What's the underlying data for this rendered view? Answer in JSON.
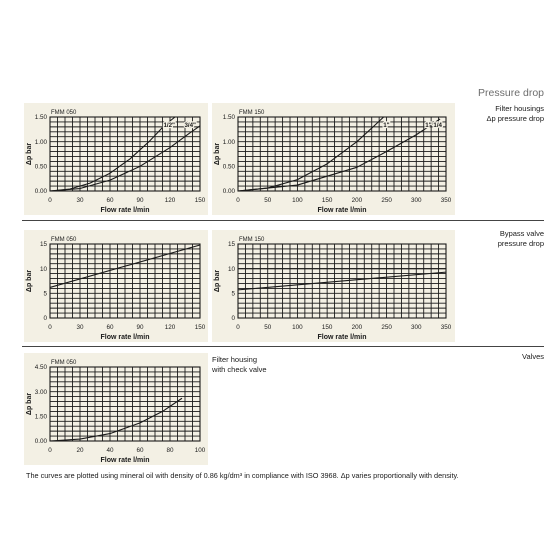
{
  "heading": "Pressure drop",
  "section_labels": {
    "filter_housings": "Filter housings",
    "filter_housings_dp": "Δp pressure drop",
    "bypass_valve": "Bypass valve",
    "bypass_pressure_drop": "pressure drop",
    "valves": "Valves",
    "check_valve_line1": "Filter housing",
    "check_valve_line2": "with check valve"
  },
  "footnote": "The curves are plotted using mineral oil with density of 0.86 kg/dm³ in compliance with ISO 3968. Δp varies proportionally with density.",
  "colors": {
    "panel_bg": "#f3f0e4",
    "grid": "#1a1a1a",
    "curve": "#1a1a1a",
    "rule": "#444444"
  },
  "chart_data": [
    {
      "id": "fh050",
      "type": "line",
      "title": "FMM 050",
      "xlabel": "Flow rate l/min",
      "ylabel": "Δp bar",
      "xlim": [
        0,
        150
      ],
      "ylim": [
        0,
        1.5
      ],
      "xticks": [
        0,
        30,
        60,
        90,
        120,
        150
      ],
      "xtick_labels": [
        "0",
        "30",
        "60",
        "90",
        "120",
        "150"
      ],
      "yticks": [
        0,
        0.5,
        1.0,
        1.5
      ],
      "ytick_labels": [
        "0.00",
        "0.50",
        "1.00",
        "1.50"
      ],
      "grid": true,
      "series": [
        {
          "name": "1/2\"",
          "x": [
            0,
            20,
            40,
            60,
            80,
            100,
            115,
            125
          ],
          "y": [
            0,
            0.04,
            0.16,
            0.36,
            0.65,
            1.02,
            1.34,
            1.5
          ]
        },
        {
          "name": "3/4\"",
          "x": [
            0,
            30,
            60,
            90,
            120,
            140,
            150
          ],
          "y": [
            0,
            0.05,
            0.22,
            0.5,
            0.88,
            1.18,
            1.32
          ]
        }
      ]
    },
    {
      "id": "fh150",
      "type": "line",
      "title": "FMM 150",
      "xlabel": "Flow rate l/min",
      "ylabel": "Δp bar",
      "xlim": [
        0,
        350
      ],
      "ylim": [
        0,
        1.5
      ],
      "xticks": [
        0,
        50,
        100,
        150,
        200,
        250,
        300,
        350
      ],
      "xtick_labels": [
        "0",
        "50",
        "100",
        "150",
        "200",
        "250",
        "300",
        "350"
      ],
      "yticks": [
        0,
        0.5,
        1.0,
        1.5
      ],
      "ytick_labels": [
        "0.00",
        "0.50",
        "1.00",
        "1.50"
      ],
      "grid": true,
      "series": [
        {
          "name": "1\"",
          "x": [
            0,
            50,
            100,
            150,
            200,
            230,
            245
          ],
          "y": [
            0,
            0.06,
            0.23,
            0.55,
            1.0,
            1.33,
            1.5
          ]
        },
        {
          "name": "1\" 1/4",
          "x": [
            0,
            100,
            200,
            250,
            300,
            340
          ],
          "y": [
            0,
            0.12,
            0.48,
            0.8,
            1.14,
            1.46
          ]
        }
      ]
    },
    {
      "id": "bp050",
      "type": "line",
      "title": "FMM 050",
      "xlabel": "Flow rate l/min",
      "ylabel": "Δp bar",
      "xlim": [
        0,
        150
      ],
      "ylim": [
        0,
        15
      ],
      "xticks": [
        0,
        30,
        60,
        90,
        120,
        150
      ],
      "xtick_labels": [
        "0",
        "30",
        "60",
        "90",
        "120",
        "150"
      ],
      "yticks": [
        0,
        5,
        10,
        15
      ],
      "ytick_labels": [
        "0",
        "5",
        "10",
        "15"
      ],
      "grid": true,
      "series": [
        {
          "x": [
            0,
            150
          ],
          "y": [
            6.2,
            14.8
          ]
        }
      ]
    },
    {
      "id": "bp150",
      "type": "line",
      "title": "FMM 150",
      "xlabel": "Flow rate l/min",
      "ylabel": "Δp bar",
      "xlim": [
        0,
        350
      ],
      "ylim": [
        0,
        15
      ],
      "xticks": [
        0,
        50,
        100,
        150,
        200,
        250,
        300,
        350
      ],
      "xtick_labels": [
        "0",
        "50",
        "100",
        "150",
        "200",
        "250",
        "300",
        "350"
      ],
      "yticks": [
        0,
        5,
        10,
        15
      ],
      "ytick_labels": [
        "0",
        "5",
        "10",
        "15"
      ],
      "grid": true,
      "series": [
        {
          "x": [
            0,
            350
          ],
          "y": [
            10,
            10
          ]
        },
        {
          "x": [
            0,
            350
          ],
          "y": [
            5.7,
            9.3
          ]
        }
      ]
    },
    {
      "id": "cv050",
      "type": "line",
      "title": "FMM 050",
      "xlabel": "Flow rate l/min",
      "ylabel": "Δp bar",
      "xlim": [
        0,
        100
      ],
      "ylim": [
        0,
        4.5
      ],
      "xticks": [
        0,
        20,
        40,
        60,
        80,
        100
      ],
      "xtick_labels": [
        "0",
        "20",
        "40",
        "60",
        "80",
        "100"
      ],
      "yticks": [
        0,
        1.5,
        3.0,
        4.5
      ],
      "ytick_labels": [
        "0.00",
        "1.50",
        "3.00",
        "4.50"
      ],
      "grid": true,
      "series": [
        {
          "x": [
            0,
            20,
            40,
            60,
            75,
            88
          ],
          "y": [
            0,
            0.12,
            0.45,
            1.1,
            1.8,
            2.6
          ]
        }
      ]
    }
  ]
}
